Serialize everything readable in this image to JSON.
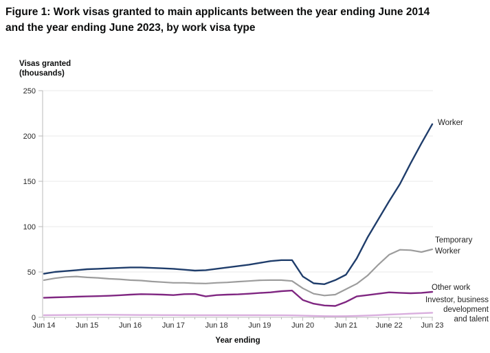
{
  "figure": {
    "title_lines": [
      "Figure 1: Work visas granted to main applicants between the year ending June 2014",
      "and the year ending June 2023, by work visa type"
    ]
  },
  "colors": {
    "worker": "#1f3d6b",
    "temporary_worker": "#9c9c9c",
    "other_work": "#7f2681",
    "investor": "#d9aede",
    "grid": "#e9e9e9",
    "axis": "#b8b8b8",
    "tick_text": "#262626"
  },
  "chart_data": {
    "type": "line",
    "title": "Work visas granted to main applicants, year ending June 2014 to year ending June 2023, by work visa type",
    "xlabel": "Year ending",
    "ylabel": "Visas granted (thousands)",
    "ylabel_lines": [
      "Visas granted",
      "(thousands)"
    ],
    "ylim": [
      0,
      250
    ],
    "y_ticks": [
      0,
      50,
      100,
      150,
      200,
      250
    ],
    "grid": "horizontal",
    "x_tick_labels": [
      "Jun 14",
      "Jun 15",
      "Jun 16",
      "Jun 17",
      "Jun 18",
      "Jun 19",
      "Jun 20",
      "Jun 21",
      "June 22",
      "Jun 23"
    ],
    "points_per_year": 4,
    "x_resolution": "quarterly rolling year-ending values",
    "legend_position": "right of line ends",
    "series": [
      {
        "name": "Worker",
        "color": "#1f3d6b",
        "label_lines": [
          "Worker"
        ],
        "values": [
          48,
          50,
          51,
          52,
          53,
          53.5,
          54,
          54.5,
          55,
          55,
          54.5,
          54,
          53.5,
          52.5,
          51.5,
          52,
          53.5,
          55,
          56.5,
          58,
          60,
          62,
          63,
          63,
          45,
          37.5,
          36.5,
          41,
          47,
          65,
          88,
          108,
          128,
          147,
          170,
          192,
          213
        ]
      },
      {
        "name": "Temporary Worker",
        "color": "#9c9c9c",
        "label_lines": [
          "Temporary",
          "Worker"
        ],
        "values": [
          41,
          43,
          44.5,
          45,
          44,
          43.5,
          42.5,
          42,
          41,
          40.5,
          39.5,
          38.8,
          38,
          38,
          37.5,
          37.3,
          38,
          38.5,
          39.3,
          40,
          40.8,
          41,
          41,
          40,
          32,
          26,
          24,
          25,
          31,
          37,
          46,
          58,
          69,
          74.5,
          74,
          72,
          75
        ]
      },
      {
        "name": "Other work",
        "color": "#7f2681",
        "label_lines": [
          "Other work"
        ],
        "values": [
          21.5,
          22,
          22.3,
          22.7,
          23,
          23.3,
          23.7,
          24.3,
          25,
          25.5,
          25.3,
          25,
          24.5,
          25.5,
          25.7,
          23,
          24.5,
          25,
          25.3,
          26,
          26.8,
          27.5,
          28.8,
          29.5,
          19,
          15,
          13,
          12.5,
          17,
          23,
          24.5,
          26,
          27.5,
          27,
          26.5,
          27,
          28
        ]
      },
      {
        "name": "Investor, business development and talent",
        "color": "#d9aede",
        "label_lines": [
          "Investor, business",
          "development",
          "and talent"
        ],
        "values": [
          2.3,
          2.4,
          2.5,
          2.6,
          2.7,
          2.8,
          2.8,
          2.7,
          2.6,
          2.5,
          2.5,
          2.4,
          2.4,
          2.3,
          2.3,
          2.3,
          2.3,
          2.3,
          2.3,
          2.3,
          2.3,
          2.2,
          2.2,
          2.1,
          1.8,
          1.5,
          1.3,
          1.2,
          1.3,
          1.6,
          2.0,
          2.4,
          3.0,
          3.5,
          4.0,
          4.5,
          5.0
        ]
      }
    ]
  }
}
